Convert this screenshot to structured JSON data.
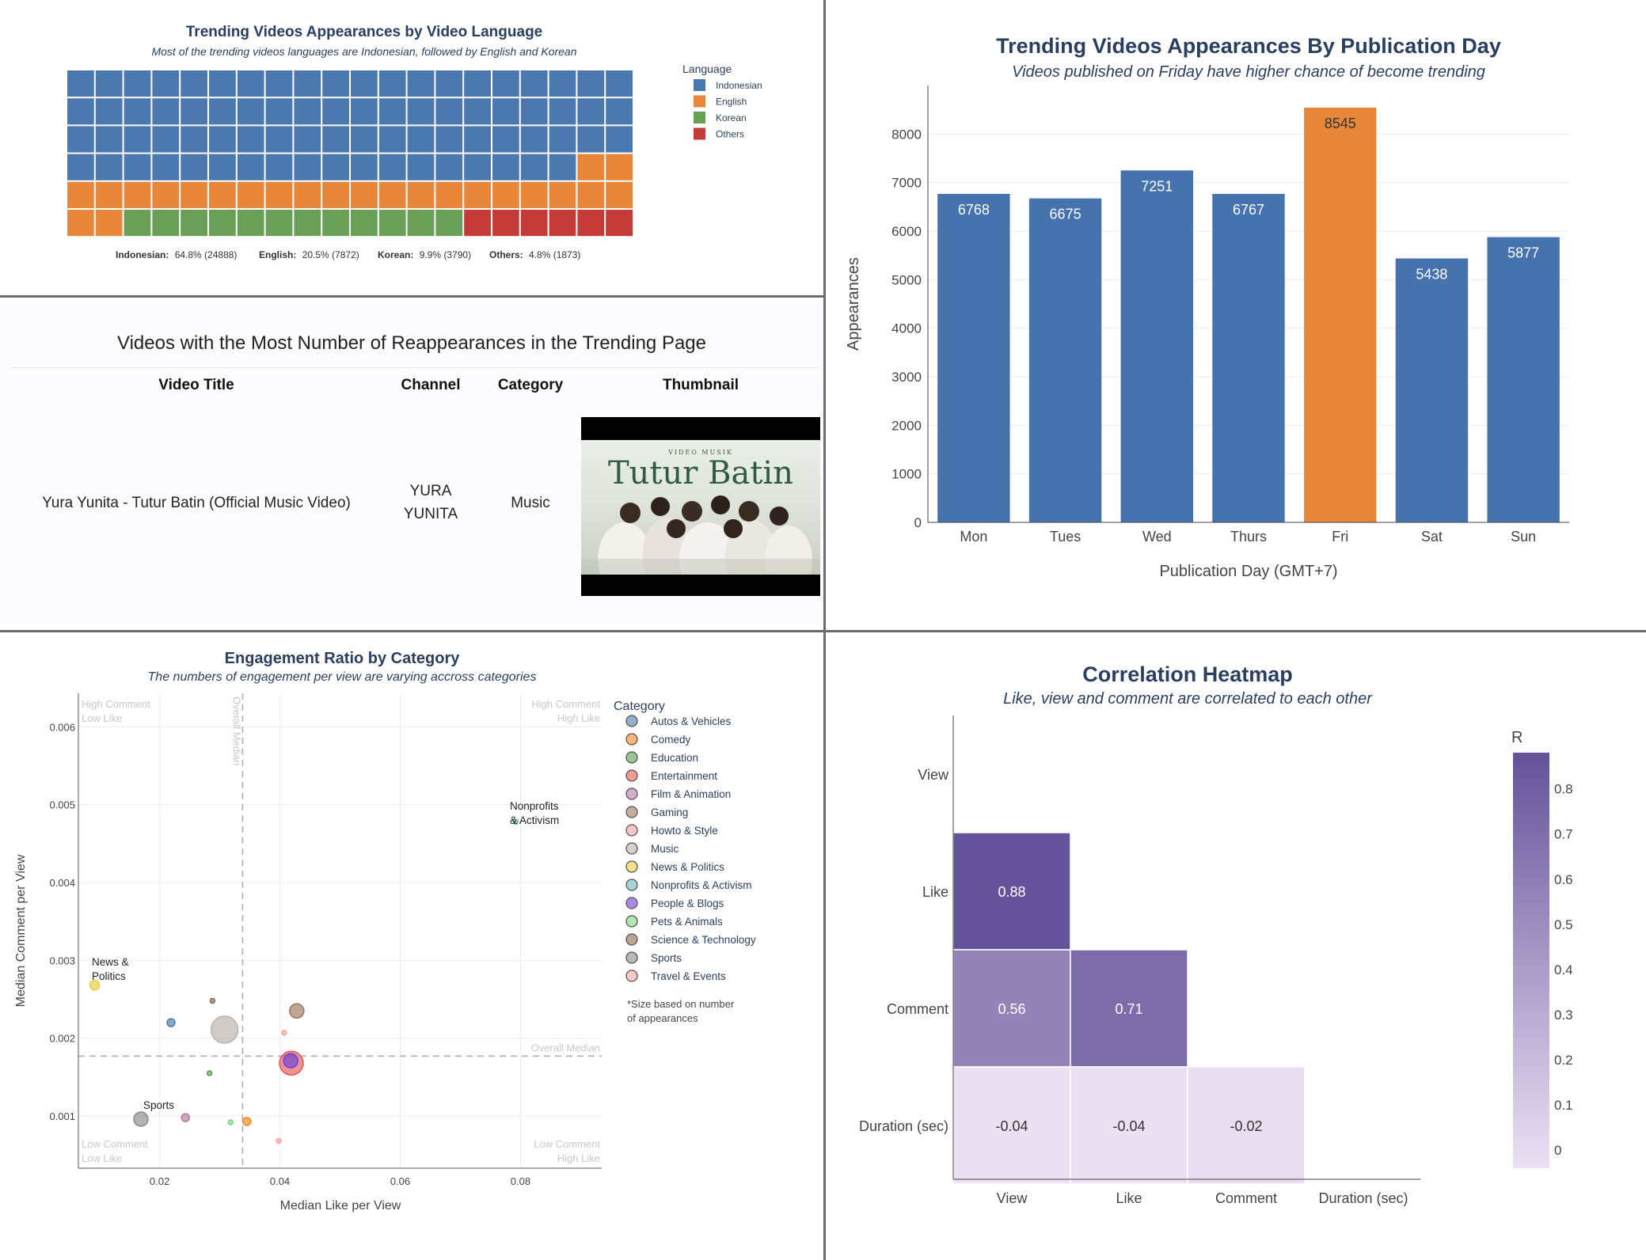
{
  "waffle": {
    "title": "Trending Videos Appearances by Video Language",
    "subtitle": "Most of the trending videos languages are Indonesian, followed by English and Korean",
    "legend_title": "Language",
    "footer": [
      {
        "label": "Indonesian:",
        "value": "64.8% (24888)"
      },
      {
        "label": "English:",
        "value": "20.5% (7872)"
      },
      {
        "label": "Korean:",
        "value": "9.9% (3790)"
      },
      {
        "label": "Others:",
        "value": "4.8% (1873)"
      }
    ]
  },
  "table": {
    "title": "Videos with the Most Number of Reappearances in the Trending Page",
    "headers": {
      "video_title": "Video Title",
      "channel": "Channel",
      "category": "Category",
      "thumbnail": "Thumbnail"
    },
    "row": {
      "video_title": "Yura Yunita - Tutur Batin (Official Music Video)",
      "channel_line1": "YURA",
      "channel_line2": "YUNITA",
      "category": "Music"
    },
    "thumbnail": {
      "kicker": "VIDEO MUSIK",
      "title": "Tutur Batin"
    }
  },
  "bar_panel": {
    "title": "Trending Videos Appearances By Publication Day",
    "subtitle": "Videos published on Friday have higher chance of become trending"
  },
  "scatter_panel": {
    "title": "Engagement Ratio by Category",
    "subtitle": "The numbers of engagement per view are varying accross categories",
    "legend_title": "Category",
    "note_line1": "*Size based on number",
    "note_line2": "of appearances",
    "quadrants": {
      "tl1": "High Comment",
      "tl2": "Low Like",
      "tr1": "High Comment",
      "tr2": "High Like",
      "bl1": "Low Comment",
      "bl2": "Low Like",
      "br1": "Low Comment",
      "br2": "High Like"
    },
    "overall_median_v": "Overall Median",
    "overall_median_h": "Overall Median",
    "annotations": {
      "nonprofits1": "Nonprofits",
      "nonprofits2": "& Activism",
      "news1": "News &",
      "news2": "Politics",
      "sports": "Sports"
    }
  },
  "heat_panel": {
    "title": "Correlation Heatmap",
    "subtitle": "Like, view and comment are correlated to each other",
    "colorbar_title": "R"
  },
  "chart_data": [
    {
      "type": "waffle",
      "grid": {
        "rows": 6,
        "cols": 20
      },
      "categories": [
        "Indonesian",
        "English",
        "Korean",
        "Others"
      ],
      "cells": [
        78,
        24,
        12,
        6
      ],
      "values": [
        24888,
        7872,
        3790,
        1873
      ],
      "percent": [
        64.8,
        20.5,
        9.9,
        4.8
      ],
      "colors": [
        "#4c78b0",
        "#e8873a",
        "#6a9f58",
        "#c43b37"
      ],
      "legend": "right"
    },
    {
      "type": "bar",
      "categories": [
        "Mon",
        "Tues",
        "Wed",
        "Thurs",
        "Fri",
        "Sat",
        "Sun"
      ],
      "values": [
        6768,
        6675,
        7251,
        6767,
        8545,
        5438,
        5877
      ],
      "highlight": "Fri",
      "colors": {
        "default": "#4673ad",
        "highlight": "#e8863a"
      },
      "xlabel": "Publication Day (GMT+7)",
      "ylabel": "Appearances",
      "ylim": [
        0,
        9000
      ],
      "yticks": [
        0,
        1000,
        2000,
        3000,
        4000,
        5000,
        6000,
        7000,
        8000
      ],
      "grid": true
    },
    {
      "type": "scatter",
      "xlabel": "Median Like per View",
      "ylabel": "Median Comment per View",
      "xlim": [
        0.0065,
        0.0935
      ],
      "ylim": [
        0.00033,
        0.00643
      ],
      "xticks": [
        0.02,
        0.04,
        0.06,
        0.08
      ],
      "xtick_labels": [
        "0.02",
        "0.04",
        "0.06",
        "0.08"
      ],
      "yticks": [
        0.001,
        0.002,
        0.003,
        0.004,
        0.005,
        0.006
      ],
      "ytick_labels": [
        "0.001",
        "0.002",
        "0.003",
        "0.004",
        "0.005",
        "0.006"
      ],
      "median_x": 0.0338,
      "median_y": 0.00177,
      "legend": "right",
      "points": [
        {
          "category": "Autos & Vehicles",
          "x": 0.0219,
          "y": 0.0022,
          "size": 5,
          "color": "#4c78a8"
        },
        {
          "category": "Comedy",
          "x": 0.0345,
          "y": 0.00093,
          "size": 5,
          "color": "#f58518"
        },
        {
          "category": "Education",
          "x": 0.0283,
          "y": 0.00155,
          "size": 3,
          "color": "#54a24b"
        },
        {
          "category": "Entertainment",
          "x": 0.0419,
          "y": 0.00168,
          "size": 15,
          "color": "#e45756"
        },
        {
          "category": "Film & Animation",
          "x": 0.0243,
          "y": 0.00098,
          "size": 5,
          "color": "#b279a2"
        },
        {
          "category": "Gaming",
          "x": 0.0428,
          "y": 0.00235,
          "size": 9,
          "color": "#9d755d"
        },
        {
          "category": "Howto & Style",
          "x": 0.0398,
          "y": 0.00068,
          "size": 3,
          "color": "#ff9da6"
        },
        {
          "category": "Music",
          "x": 0.0308,
          "y": 0.00211,
          "size": 17,
          "color": "#bab0ac"
        },
        {
          "category": "News & Politics",
          "x": 0.0092,
          "y": 0.00268,
          "size": 6,
          "color": "#eeca3b"
        },
        {
          "category": "Nonprofits & Activism",
          "x": 0.0792,
          "y": 0.00478,
          "size": 3,
          "color": "#72b7b2"
        },
        {
          "category": "People & Blogs",
          "x": 0.0418,
          "y": 0.00171,
          "size": 9,
          "color": "#6b3fd8"
        },
        {
          "category": "Pets & Animals",
          "x": 0.0318,
          "y": 0.00092,
          "size": 3,
          "color": "#7ad680"
        },
        {
          "category": "Science & Technology",
          "x": 0.0288,
          "y": 0.00248,
          "size": 3,
          "color": "#8c6a4a"
        },
        {
          "category": "Sports",
          "x": 0.0169,
          "y": 0.00096,
          "size": 9,
          "color": "#888888"
        },
        {
          "category": "Travel & Events",
          "x": 0.0407,
          "y": 0.00207,
          "size": 3,
          "color": "#f4a7a0"
        }
      ]
    },
    {
      "type": "heatmap",
      "labels": [
        "View",
        "Like",
        "Comment",
        "Duration (sec)"
      ],
      "cells": [
        {
          "row": "Like",
          "col": "View",
          "value": 0.88,
          "label": "0.88"
        },
        {
          "row": "Comment",
          "col": "View",
          "value": 0.56,
          "label": "0.56"
        },
        {
          "row": "Comment",
          "col": "Like",
          "value": 0.71,
          "label": "0.71"
        },
        {
          "row": "Duration (sec)",
          "col": "View",
          "value": -0.04,
          "label": "-0.04"
        },
        {
          "row": "Duration (sec)",
          "col": "Like",
          "value": -0.04,
          "label": "-0.04"
        },
        {
          "row": "Duration (sec)",
          "col": "Comment",
          "value": -0.02,
          "label": "-0.02"
        }
      ],
      "colorscale": [
        "#ece0f3",
        "#64529a"
      ],
      "zlim": [
        -0.04,
        0.88
      ],
      "colorbar_ticks": [
        0,
        0.1,
        0.2,
        0.3,
        0.4,
        0.5,
        0.6,
        0.7,
        0.8
      ],
      "colorbar_tick_labels": [
        "0",
        "0.1",
        "0.2",
        "0.3",
        "0.4",
        "0.5",
        "0.6",
        "0.7",
        "0.8"
      ]
    }
  ]
}
